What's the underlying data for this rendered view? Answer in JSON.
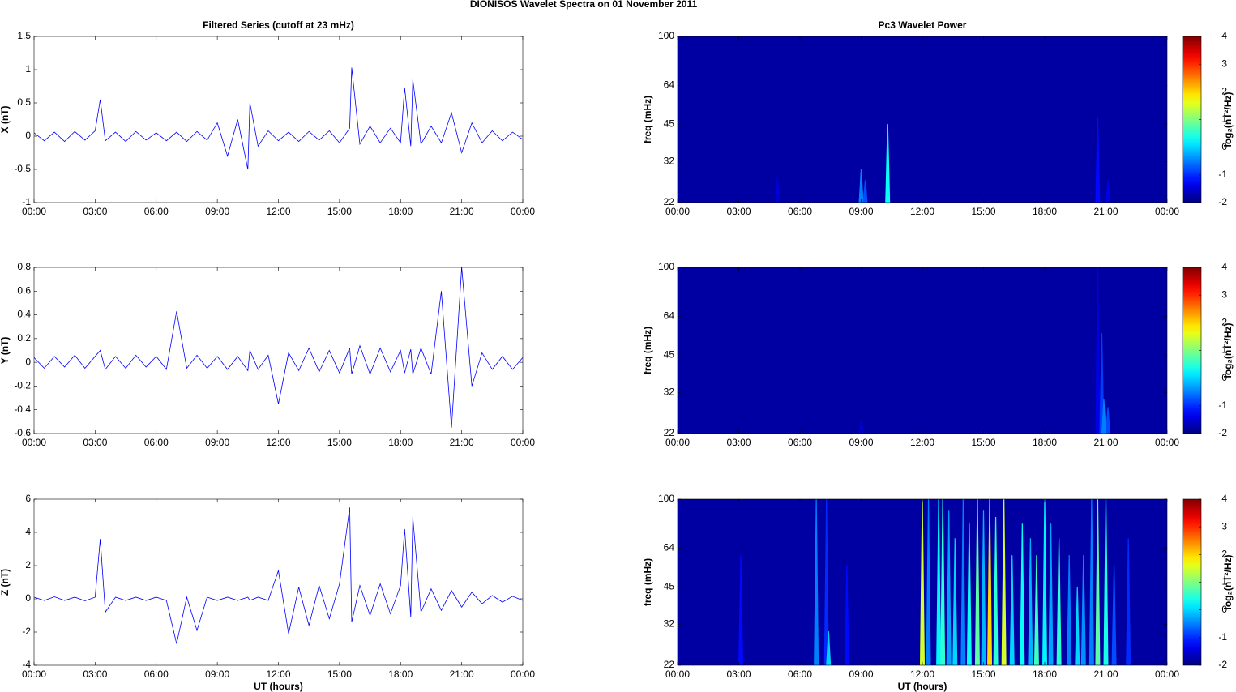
{
  "title": "DIONISOS Wavelet Spectra on 01 November  2011",
  "chart_data": [
    {
      "type": "line",
      "title": "Filtered Series (cutoff at 23 mHz)",
      "ylabel": "X (nT)",
      "color": "#0000ff",
      "xlim": [
        0,
        24
      ],
      "xticks": [
        {
          "value": 0,
          "label": "00:00"
        },
        {
          "value": 3,
          "label": "03:00"
        },
        {
          "value": 6,
          "label": "06:00"
        },
        {
          "value": 9,
          "label": "09:00"
        },
        {
          "value": 12,
          "label": "12:00"
        },
        {
          "value": 15,
          "label": "15:00"
        },
        {
          "value": 18,
          "label": "18:00"
        },
        {
          "value": 21,
          "label": "21:00"
        },
        {
          "value": 24,
          "label": "00:00"
        }
      ],
      "ylim": [
        -1,
        1.5
      ],
      "yticks": [
        -1,
        -0.5,
        0,
        0.5,
        1,
        1.5
      ],
      "x": [
        0,
        0.5,
        1,
        1.5,
        2,
        2.5,
        3,
        3.25,
        3.5,
        4,
        4.5,
        5,
        5.5,
        6,
        6.5,
        7,
        7.5,
        8,
        8.5,
        9,
        9.5,
        10,
        10.5,
        10.6,
        11,
        11.5,
        12,
        12.5,
        13,
        13.5,
        14,
        14.5,
        15,
        15.5,
        15.6,
        16,
        16.5,
        17,
        17.5,
        18,
        18.2,
        18.5,
        18.6,
        19,
        19.5,
        20,
        20.5,
        21,
        21.5,
        22,
        22.5,
        23,
        23.5,
        24
      ],
      "values": [
        0.05,
        -0.07,
        0.06,
        -0.08,
        0.07,
        -0.06,
        0.08,
        0.55,
        -0.07,
        0.06,
        -0.08,
        0.07,
        -0.06,
        0.05,
        -0.07,
        0.06,
        -0.08,
        0.07,
        -0.06,
        0.2,
        -0.3,
        0.25,
        -0.5,
        0.5,
        -0.15,
        0.08,
        -0.07,
        0.06,
        -0.08,
        0.07,
        -0.06,
        0.08,
        -0.1,
        0.12,
        1.03,
        -0.12,
        0.15,
        -0.1,
        0.12,
        -0.1,
        0.73,
        -0.15,
        0.85,
        -0.12,
        0.15,
        -0.1,
        0.35,
        -0.25,
        0.2,
        -0.1,
        0.08,
        -0.07,
        0.06,
        -0.05
      ]
    },
    {
      "type": "line",
      "ylabel": "Y (nT)",
      "color": "#0000ff",
      "xlim": [
        0,
        24
      ],
      "xticks": [
        {
          "value": 0,
          "label": "00:00"
        },
        {
          "value": 3,
          "label": "03:00"
        },
        {
          "value": 6,
          "label": "06:00"
        },
        {
          "value": 9,
          "label": "09:00"
        },
        {
          "value": 12,
          "label": "12:00"
        },
        {
          "value": 15,
          "label": "15:00"
        },
        {
          "value": 18,
          "label": "18:00"
        },
        {
          "value": 21,
          "label": "21:00"
        },
        {
          "value": 24,
          "label": "00:00"
        }
      ],
      "ylim": [
        -0.6,
        0.8
      ],
      "yticks": [
        -0.6,
        -0.4,
        -0.2,
        0,
        0.2,
        0.4,
        0.6,
        0.8
      ],
      "x": [
        0,
        0.5,
        1,
        1.5,
        2,
        2.5,
        3,
        3.25,
        3.5,
        4,
        4.5,
        5,
        5.5,
        6,
        6.5,
        7,
        7.5,
        8,
        8.5,
        9,
        9.5,
        10,
        10.5,
        10.6,
        11,
        11.5,
        12,
        12.5,
        13,
        13.5,
        14,
        14.5,
        15,
        15.5,
        15.6,
        16,
        16.5,
        17,
        17.5,
        18,
        18.2,
        18.5,
        18.6,
        19,
        19.5,
        20,
        20.5,
        21,
        21.5,
        22,
        22.5,
        23,
        23.5,
        24
      ],
      "values": [
        0.04,
        -0.05,
        0.05,
        -0.04,
        0.06,
        -0.05,
        0.05,
        0.1,
        -0.06,
        0.05,
        -0.05,
        0.06,
        -0.04,
        0.05,
        -0.06,
        0.43,
        -0.05,
        0.06,
        -0.05,
        0.05,
        -0.06,
        0.05,
        -0.07,
        0.1,
        -0.06,
        0.06,
        -0.35,
        0.08,
        -0.07,
        0.12,
        -0.08,
        0.1,
        -0.09,
        0.12,
        -0.1,
        0.14,
        -0.1,
        0.12,
        -0.08,
        0.1,
        -0.09,
        0.11,
        -0.1,
        0.12,
        -0.1,
        0.6,
        -0.55,
        0.8,
        -0.2,
        0.08,
        -0.06,
        0.05,
        -0.06,
        0.04
      ]
    },
    {
      "type": "line",
      "ylabel": "Z (nT)",
      "xlabel": "UT (hours)",
      "color": "#0000ff",
      "xlim": [
        0,
        24
      ],
      "xticks": [
        {
          "value": 0,
          "label": "00:00"
        },
        {
          "value": 3,
          "label": "03:00"
        },
        {
          "value": 6,
          "label": "06:00"
        },
        {
          "value": 9,
          "label": "09:00"
        },
        {
          "value": 12,
          "label": "12:00"
        },
        {
          "value": 15,
          "label": "15:00"
        },
        {
          "value": 18,
          "label": "18:00"
        },
        {
          "value": 21,
          "label": "21:00"
        },
        {
          "value": 24,
          "label": "00:00"
        }
      ],
      "ylim": [
        -4,
        6
      ],
      "yticks": [
        -4,
        -2,
        0,
        2,
        4,
        6
      ],
      "x": [
        0,
        0.5,
        1,
        1.5,
        2,
        2.5,
        3,
        3.25,
        3.5,
        4,
        4.5,
        5,
        5.5,
        6,
        6.5,
        7,
        7.5,
        8,
        8.5,
        9,
        9.5,
        10,
        10.5,
        10.6,
        11,
        11.5,
        12,
        12.5,
        13,
        13.5,
        14,
        14.5,
        15,
        15.5,
        15.6,
        16,
        16.5,
        17,
        17.5,
        18,
        18.2,
        18.5,
        18.6,
        19,
        19.5,
        20,
        20.5,
        21,
        21.5,
        22,
        22.5,
        23,
        23.5,
        24
      ],
      "values": [
        0.1,
        -0.1,
        0.12,
        -0.1,
        0.1,
        -0.12,
        0.1,
        3.6,
        -0.8,
        0.1,
        -0.1,
        0.1,
        -0.1,
        0.1,
        -0.1,
        -2.7,
        0.1,
        -1.9,
        0.1,
        -0.1,
        0.1,
        -0.1,
        0.1,
        -0.1,
        0.1,
        -0.1,
        1.7,
        -2.1,
        0.7,
        -1.6,
        0.8,
        -1.2,
        0.9,
        5.5,
        -1.4,
        0.8,
        -1.0,
        0.9,
        -0.9,
        0.8,
        4.2,
        -1.1,
        4.9,
        -0.8,
        0.6,
        -0.7,
        0.5,
        -0.5,
        0.4,
        -0.3,
        0.2,
        -0.2,
        0.15,
        -0.1
      ]
    },
    {
      "type": "heatmap",
      "title": "Pc3 Wavelet Power",
      "ylabel": "freq (mHz)",
      "clabel": "log₂(nT²/Hz)",
      "log_y": true,
      "xlim": [
        0,
        24
      ],
      "xticks": [
        {
          "value": 0,
          "label": "00:00"
        },
        {
          "value": 3,
          "label": "03:00"
        },
        {
          "value": 6,
          "label": "06:00"
        },
        {
          "value": 9,
          "label": "09:00"
        },
        {
          "value": 12,
          "label": "12:00"
        },
        {
          "value": 15,
          "label": "15:00"
        },
        {
          "value": 18,
          "label": "18:00"
        },
        {
          "value": 21,
          "label": "21:00"
        },
        {
          "value": 24,
          "label": "00:00"
        }
      ],
      "ylim": [
        22,
        100
      ],
      "yticks": [
        22,
        32,
        45,
        64,
        100
      ],
      "clim": [
        -2,
        4
      ],
      "cticks": [
        -2,
        -1,
        0,
        1,
        2,
        3,
        4
      ],
      "background": -1.8,
      "streaks": [
        {
          "x": 4.9,
          "fmax": 28,
          "value": -1.5
        },
        {
          "x": 9.0,
          "fmax": 30,
          "value": -0.5
        },
        {
          "x": 9.2,
          "fmax": 27,
          "value": -0.8
        },
        {
          "x": 10.3,
          "fmax": 45,
          "value": 0.3
        },
        {
          "x": 20.6,
          "fmax": 48,
          "value": -1.2
        },
        {
          "x": 21.1,
          "fmax": 27,
          "value": -1.4
        }
      ]
    },
    {
      "type": "heatmap",
      "ylabel": "freq (mHz)",
      "clabel": "log₂(nT²/Hz)",
      "log_y": true,
      "xlim": [
        0,
        24
      ],
      "xticks": [
        {
          "value": 0,
          "label": "00:00"
        },
        {
          "value": 3,
          "label": "03:00"
        },
        {
          "value": 6,
          "label": "06:00"
        },
        {
          "value": 9,
          "label": "09:00"
        },
        {
          "value": 12,
          "label": "12:00"
        },
        {
          "value": 15,
          "label": "15:00"
        },
        {
          "value": 18,
          "label": "18:00"
        },
        {
          "value": 21,
          "label": "21:00"
        },
        {
          "value": 24,
          "label": "00:00"
        }
      ],
      "ylim": [
        22,
        100
      ],
      "yticks": [
        22,
        32,
        45,
        64,
        100
      ],
      "clim": [
        -2,
        4
      ],
      "cticks": [
        -2,
        -1,
        0,
        1,
        2,
        3,
        4
      ],
      "background": -1.8,
      "streaks": [
        {
          "x": 9.0,
          "fmax": 25,
          "value": -1.5
        },
        {
          "x": 20.6,
          "fmax": 100,
          "value": -1.4
        },
        {
          "x": 20.8,
          "fmax": 55,
          "value": -0.9
        },
        {
          "x": 20.9,
          "fmax": 30,
          "value": -0.5
        },
        {
          "x": 21.1,
          "fmax": 28,
          "value": -0.8
        }
      ]
    },
    {
      "type": "heatmap",
      "ylabel": "freq (mHz)",
      "xlabel": "UT (hours)",
      "clabel": "log₂(nT²/Hz)",
      "log_y": true,
      "xlim": [
        0,
        24
      ],
      "xticks": [
        {
          "value": 0,
          "label": "00:00"
        },
        {
          "value": 3,
          "label": "03:00"
        },
        {
          "value": 6,
          "label": "06:00"
        },
        {
          "value": 9,
          "label": "09:00"
        },
        {
          "value": 12,
          "label": "12:00"
        },
        {
          "value": 15,
          "label": "15:00"
        },
        {
          "value": 18,
          "label": "18:00"
        },
        {
          "value": 21,
          "label": "21:00"
        },
        {
          "value": 24,
          "label": "00:00"
        }
      ],
      "ylim": [
        22,
        100
      ],
      "yticks": [
        22,
        32,
        45,
        64,
        100
      ],
      "clim": [
        -2,
        4
      ],
      "cticks": [
        -2,
        -1,
        0,
        1,
        2,
        3,
        4
      ],
      "background": -1.8,
      "streaks": [
        {
          "x": 3.1,
          "fmax": 60,
          "value": -1.2
        },
        {
          "x": 6.8,
          "fmax": 100,
          "value": -0.5
        },
        {
          "x": 7.3,
          "fmax": 100,
          "value": -1
        },
        {
          "x": 7.4,
          "fmax": 30,
          "value": 0
        },
        {
          "x": 8.3,
          "fmax": 55,
          "value": -1.2
        },
        {
          "x": 12.0,
          "fmax": 100,
          "value": 1.5
        },
        {
          "x": 12.3,
          "fmax": 100,
          "value": -0.5
        },
        {
          "x": 12.8,
          "fmax": 100,
          "value": 0.2
        },
        {
          "x": 13.0,
          "fmax": 100,
          "value": 0.5
        },
        {
          "x": 13.3,
          "fmax": 90,
          "value": -0.3
        },
        {
          "x": 13.6,
          "fmax": 70,
          "value": 0
        },
        {
          "x": 14.0,
          "fmax": 100,
          "value": -0.5
        },
        {
          "x": 14.3,
          "fmax": 80,
          "value": 0.3
        },
        {
          "x": 14.7,
          "fmax": 100,
          "value": 0.8
        },
        {
          "x": 15.0,
          "fmax": 90,
          "value": -0.2
        },
        {
          "x": 15.3,
          "fmax": 100,
          "value": 2
        },
        {
          "x": 15.6,
          "fmax": 85,
          "value": 0.5
        },
        {
          "x": 16.0,
          "fmax": 100,
          "value": 1.5
        },
        {
          "x": 16.4,
          "fmax": 60,
          "value": 0
        },
        {
          "x": 16.9,
          "fmax": 80,
          "value": 0.3
        },
        {
          "x": 17.3,
          "fmax": 70,
          "value": -0.2
        },
        {
          "x": 17.6,
          "fmax": 60,
          "value": 0.6
        },
        {
          "x": 18.0,
          "fmax": 100,
          "value": 0.2
        },
        {
          "x": 18.3,
          "fmax": 80,
          "value": -0.3
        },
        {
          "x": 18.7,
          "fmax": 70,
          "value": 0.5
        },
        {
          "x": 19.2,
          "fmax": 60,
          "value": -0.5
        },
        {
          "x": 19.6,
          "fmax": 45,
          "value": 0
        },
        {
          "x": 19.9,
          "fmax": 60,
          "value": -0.4
        },
        {
          "x": 20.3,
          "fmax": 100,
          "value": -0.5
        },
        {
          "x": 20.6,
          "fmax": 100,
          "value": 0.8
        },
        {
          "x": 21.0,
          "fmax": 100,
          "value": 0.4
        },
        {
          "x": 21.4,
          "fmax": 55,
          "value": -0.8
        },
        {
          "x": 22.1,
          "fmax": 70,
          "value": -1.0
        }
      ]
    }
  ]
}
